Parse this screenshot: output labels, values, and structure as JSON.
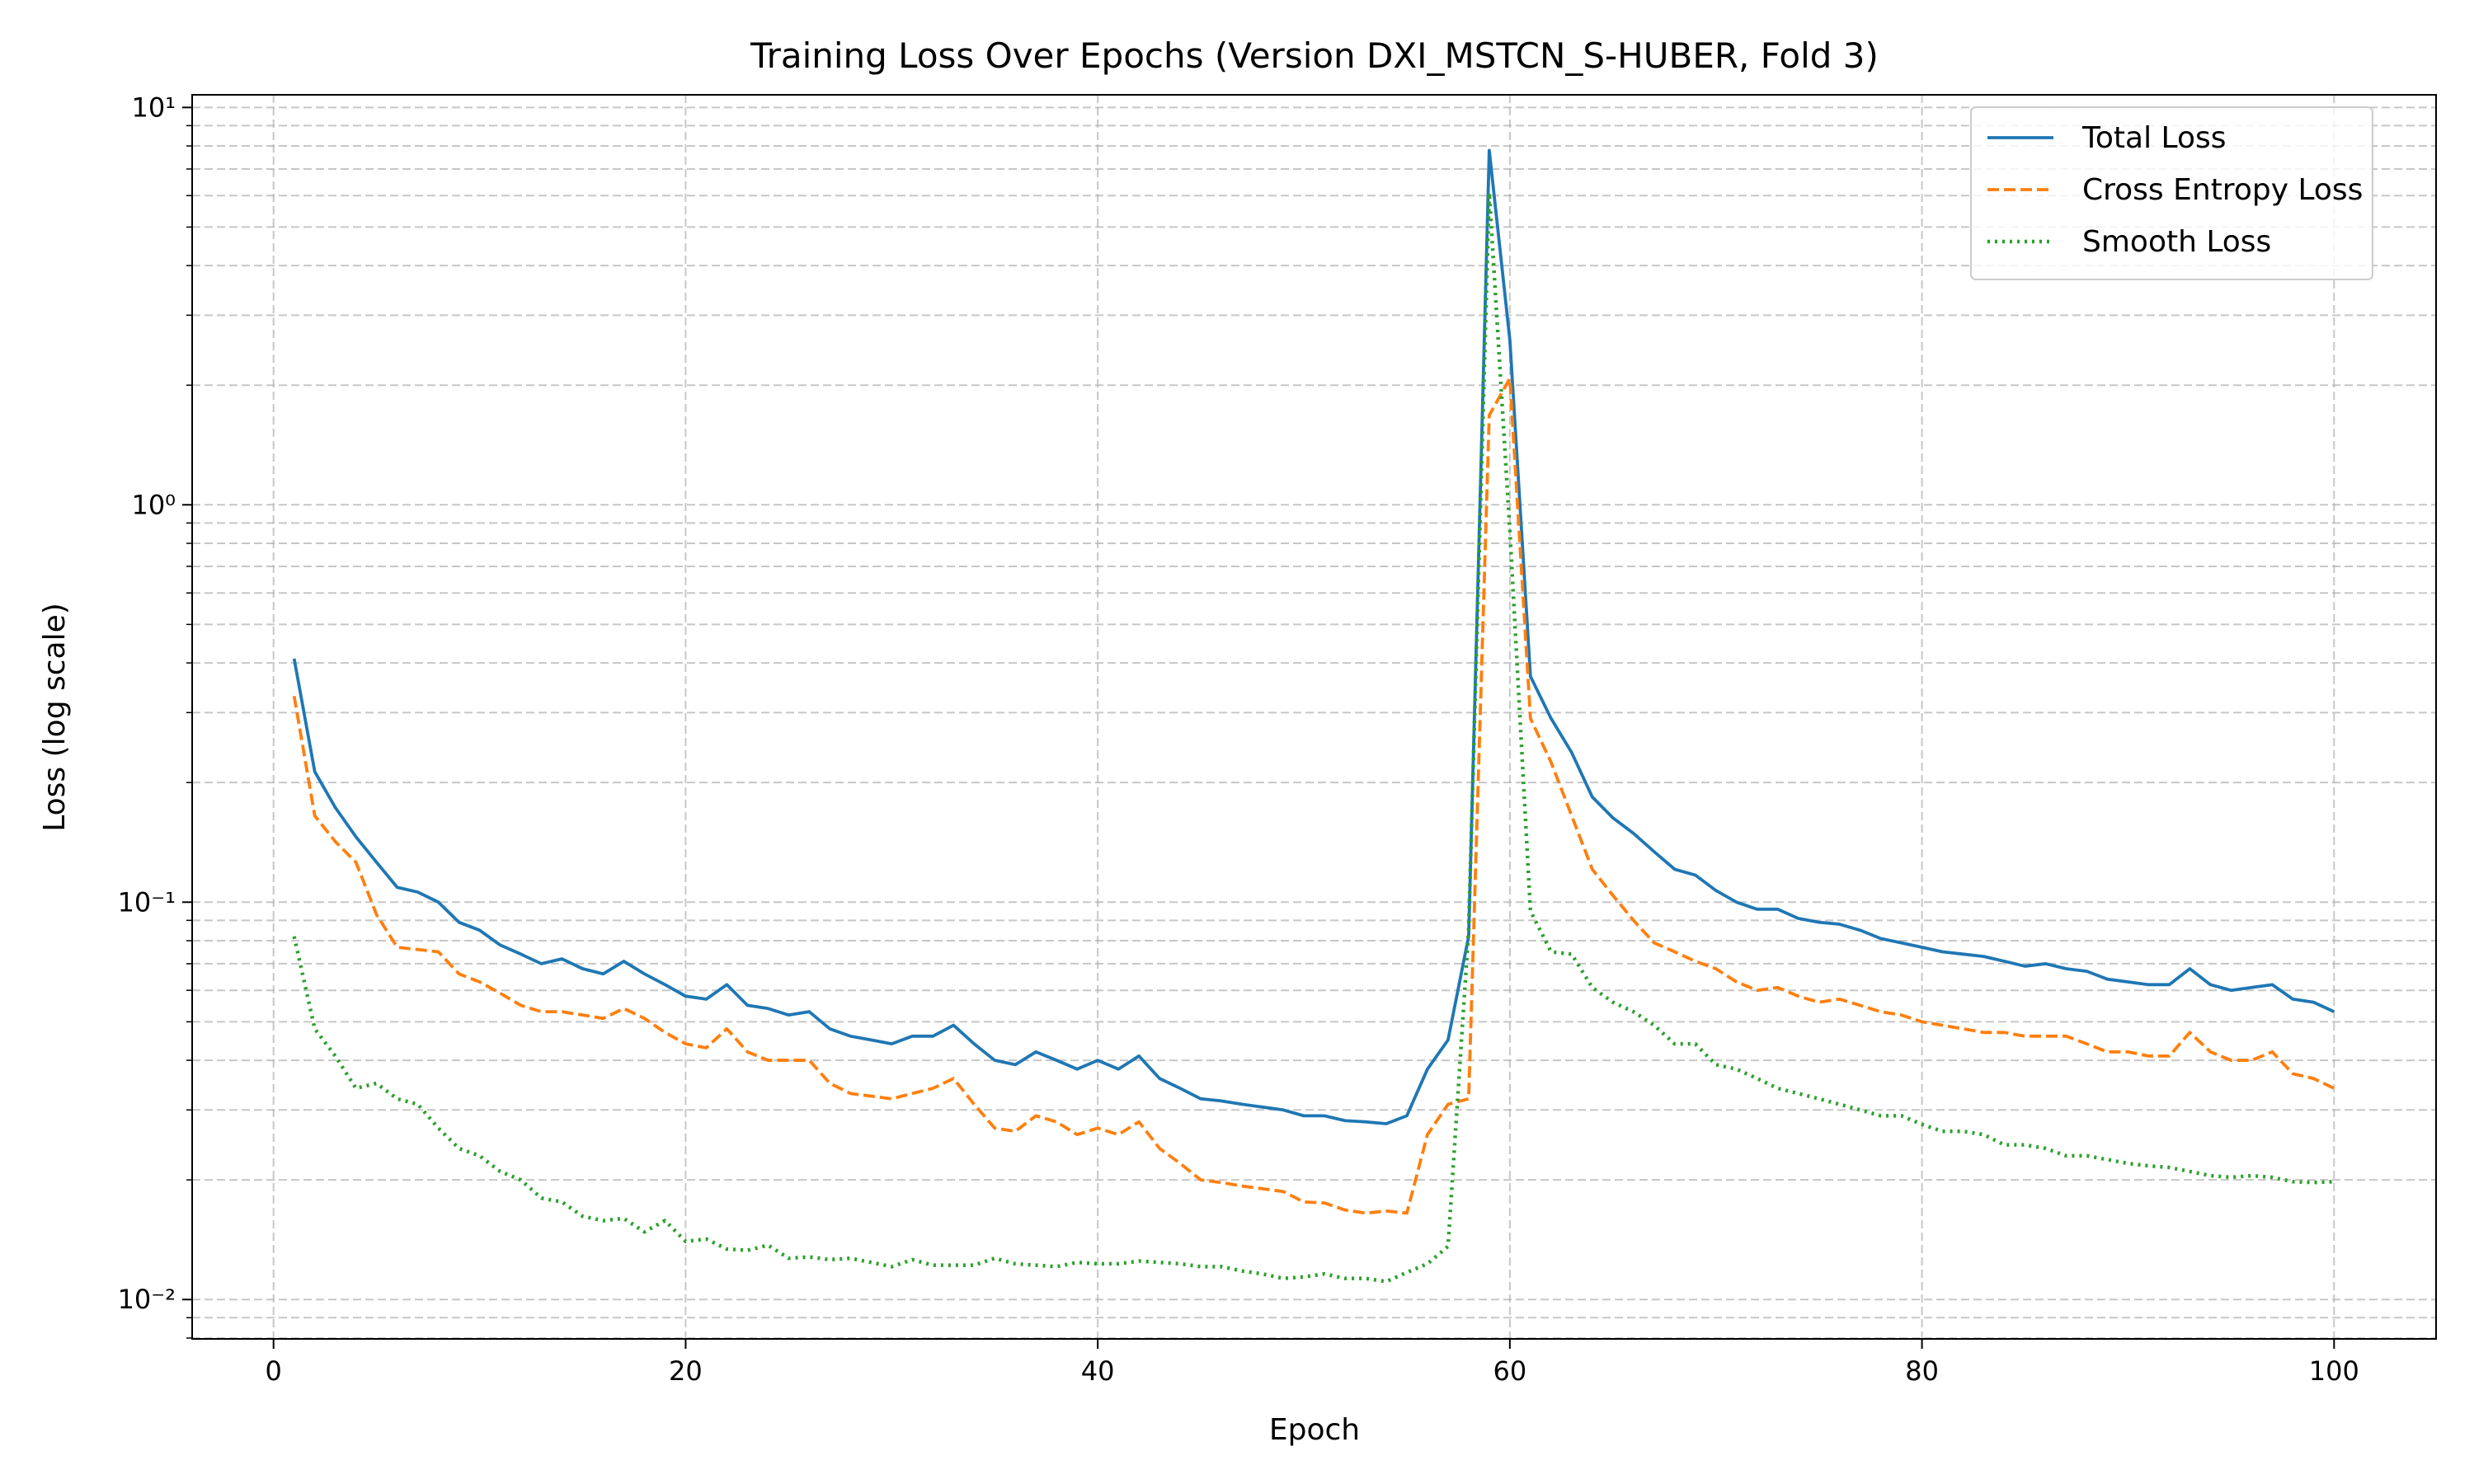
{
  "chart_data": {
    "type": "line",
    "title": "Training Loss Over Epochs (Version DXI_MSTCN_S-HUBER, Fold 3)",
    "xlabel": "Epoch",
    "ylabel": "Loss (log scale)",
    "yscale": "log",
    "grid": true,
    "legend": "upper right",
    "xlim": [
      -3.95,
      104.95
    ],
    "ylim": [
      0.00796,
      10.76
    ],
    "xticks": [
      0,
      20,
      40,
      60,
      80,
      100
    ],
    "yticks": [
      {
        "value": 0.01,
        "label": "10⁻²"
      },
      {
        "value": 0.1,
        "label": "10⁻¹"
      },
      {
        "value": 1,
        "label": "10⁰"
      },
      {
        "value": 10,
        "label": "10¹"
      }
    ],
    "y_minor_ticks": [
      0.008,
      0.009,
      0.02,
      0.03,
      0.04,
      0.05,
      0.06,
      0.07,
      0.08,
      0.09,
      0.2,
      0.3,
      0.4,
      0.5,
      0.6,
      0.7,
      0.8,
      0.9,
      2,
      3,
      4,
      5,
      6,
      7,
      8,
      9
    ],
    "x": [
      1,
      2,
      3,
      4,
      5,
      6,
      7,
      8,
      9,
      10,
      11,
      12,
      13,
      14,
      15,
      16,
      17,
      18,
      19,
      20,
      21,
      22,
      23,
      24,
      25,
      26,
      27,
      28,
      29,
      30,
      31,
      32,
      33,
      34,
      35,
      36,
      37,
      38,
      39,
      40,
      41,
      42,
      43,
      44,
      45,
      46,
      47,
      48,
      49,
      50,
      51,
      52,
      53,
      54,
      55,
      56,
      57,
      58,
      59,
      60,
      61,
      62,
      63,
      64,
      65,
      66,
      67,
      68,
      69,
      70,
      71,
      72,
      73,
      74,
      75,
      76,
      77,
      78,
      79,
      80,
      81,
      82,
      83,
      84,
      85,
      86,
      87,
      88,
      89,
      90,
      91,
      92,
      93,
      94,
      95,
      96,
      97,
      98,
      99,
      100
    ],
    "series": [
      {
        "name": "Total Loss",
        "color": "#1f77b4",
        "dash": "solid",
        "values": [
          0.41,
          0.213,
          0.173,
          0.146,
          0.126,
          0.109,
          0.106,
          0.1,
          0.089,
          0.085,
          0.078,
          0.074,
          0.07,
          0.072,
          0.068,
          0.066,
          0.071,
          0.066,
          0.062,
          0.058,
          0.057,
          0.062,
          0.055,
          0.054,
          0.052,
          0.053,
          0.048,
          0.046,
          0.045,
          0.044,
          0.046,
          0.046,
          0.049,
          0.044,
          0.04,
          0.039,
          0.042,
          0.04,
          0.038,
          0.04,
          0.038,
          0.041,
          0.036,
          0.034,
          0.032,
          0.0316,
          0.031,
          0.0305,
          0.03,
          0.029,
          0.029,
          0.0282,
          0.028,
          0.0277,
          0.029,
          0.038,
          0.045,
          0.082,
          7.8,
          2.6,
          0.37,
          0.29,
          0.238,
          0.184,
          0.163,
          0.149,
          0.134,
          0.121,
          0.117,
          0.107,
          0.1,
          0.096,
          0.096,
          0.091,
          0.089,
          0.088,
          0.085,
          0.081,
          0.079,
          0.077,
          0.075,
          0.074,
          0.073,
          0.071,
          0.069,
          0.07,
          0.068,
          0.067,
          0.064,
          0.063,
          0.062,
          0.062,
          0.068,
          0.062,
          0.06,
          0.061,
          0.062,
          0.057,
          0.056,
          0.053
        ]
      },
      {
        "name": "Cross Entropy Loss",
        "color": "#ff7f0e",
        "dash": "dashed",
        "values": [
          0.33,
          0.165,
          0.142,
          0.126,
          0.093,
          0.077,
          0.076,
          0.075,
          0.066,
          0.063,
          0.059,
          0.055,
          0.053,
          0.053,
          0.052,
          0.051,
          0.054,
          0.051,
          0.047,
          0.044,
          0.043,
          0.048,
          0.042,
          0.04,
          0.04,
          0.04,
          0.035,
          0.033,
          0.0325,
          0.032,
          0.033,
          0.034,
          0.036,
          0.031,
          0.027,
          0.0265,
          0.029,
          0.028,
          0.026,
          0.027,
          0.026,
          0.028,
          0.024,
          0.022,
          0.02,
          0.0197,
          0.0193,
          0.019,
          0.0187,
          0.0176,
          0.0175,
          0.0168,
          0.0165,
          0.0167,
          0.0165,
          0.026,
          0.031,
          0.032,
          1.68,
          2.08,
          0.29,
          0.225,
          0.165,
          0.121,
          0.104,
          0.09,
          0.079,
          0.075,
          0.071,
          0.068,
          0.063,
          0.06,
          0.061,
          0.058,
          0.056,
          0.057,
          0.055,
          0.053,
          0.052,
          0.05,
          0.049,
          0.048,
          0.047,
          0.047,
          0.046,
          0.046,
          0.046,
          0.044,
          0.042,
          0.042,
          0.041,
          0.041,
          0.047,
          0.042,
          0.04,
          0.04,
          0.042,
          0.037,
          0.036,
          0.034
        ]
      },
      {
        "name": "Smooth Loss",
        "color": "#2ca02c",
        "dash": "dotted",
        "values": [
          0.082,
          0.048,
          0.041,
          0.034,
          0.035,
          0.032,
          0.031,
          0.027,
          0.024,
          0.023,
          0.021,
          0.02,
          0.018,
          0.0176,
          0.0162,
          0.0158,
          0.016,
          0.0148,
          0.0158,
          0.014,
          0.0142,
          0.0134,
          0.0133,
          0.0137,
          0.0127,
          0.0128,
          0.0126,
          0.0127,
          0.0124,
          0.0121,
          0.0126,
          0.0122,
          0.0122,
          0.0122,
          0.0127,
          0.0123,
          0.0122,
          0.0121,
          0.0124,
          0.0123,
          0.0123,
          0.0125,
          0.0124,
          0.0123,
          0.0121,
          0.0121,
          0.0118,
          0.0116,
          0.0113,
          0.0114,
          0.0116,
          0.0113,
          0.0113,
          0.0111,
          0.0117,
          0.0123,
          0.0136,
          0.085,
          6.1,
          0.86,
          0.095,
          0.075,
          0.074,
          0.061,
          0.056,
          0.053,
          0.049,
          0.044,
          0.044,
          0.039,
          0.038,
          0.036,
          0.034,
          0.033,
          0.032,
          0.031,
          0.03,
          0.029,
          0.029,
          0.0276,
          0.0265,
          0.0265,
          0.026,
          0.0245,
          0.0245,
          0.024,
          0.023,
          0.023,
          0.0225,
          0.022,
          0.0217,
          0.0215,
          0.021,
          0.0205,
          0.0203,
          0.0205,
          0.0203,
          0.0198,
          0.0197,
          0.0198
        ]
      }
    ]
  }
}
